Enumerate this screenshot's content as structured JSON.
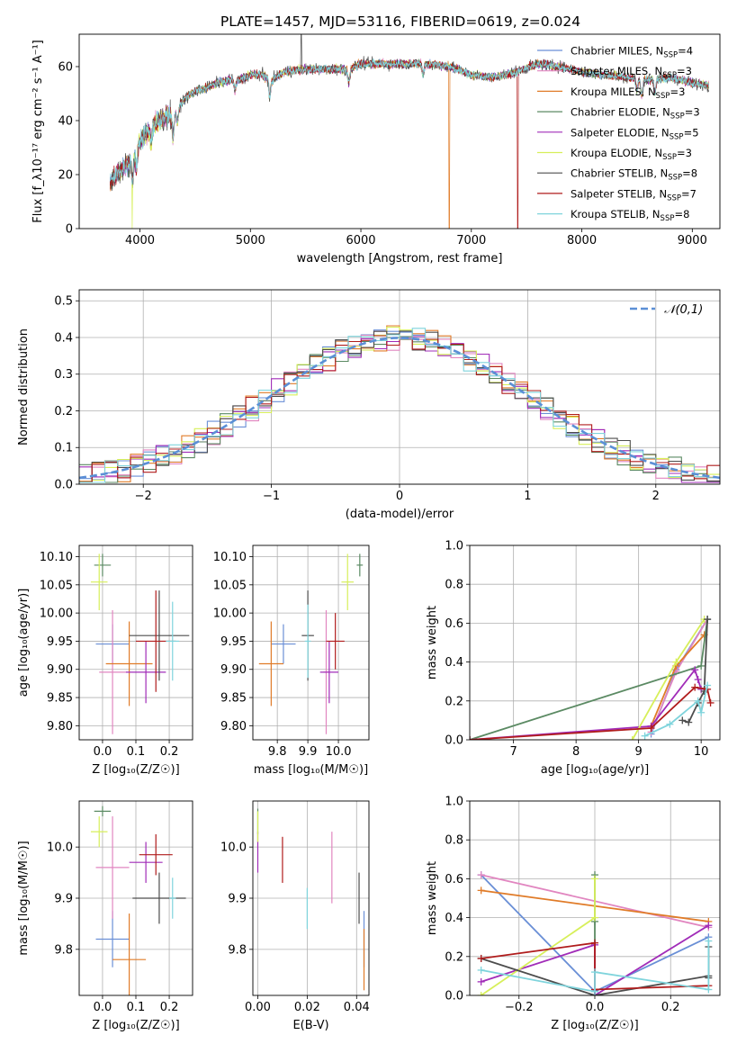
{
  "figure_title": "PLATE=1457, MJD=53116, FIBERID=0619, z=0.024",
  "models": [
    {
      "name": "Chabrier MILES",
      "nssp": "4",
      "color": "#6a8fd6"
    },
    {
      "name": "Salpeter MILES",
      "nssp": "3",
      "color": "#e186c0"
    },
    {
      "name": "Kroupa MILES",
      "nssp": "3",
      "color": "#e07b28"
    },
    {
      "name": "Chabrier ELODIE",
      "nssp": "3",
      "color": "#5b8a63"
    },
    {
      "name": "Salpeter ELODIE",
      "nssp": "5",
      "color": "#a12cb8"
    },
    {
      "name": "Kroupa ELODIE",
      "nssp": "3",
      "color": "#d7ef5a"
    },
    {
      "name": "Chabrier STELIB",
      "nssp": "8",
      "color": "#4d4d4d"
    },
    {
      "name": "Salpeter STELIB",
      "nssp": "7",
      "color": "#b01c1c"
    },
    {
      "name": "Kroupa STELIB",
      "nssp": "8",
      "color": "#7fd4dc"
    }
  ],
  "chart_data": [
    {
      "id": "spectrum",
      "type": "line",
      "xlabel": "wavelength [Angstrom, rest frame]",
      "ylabel": "Flux [f_λ10⁻¹⁷ erg cm⁻² s⁻¹ A⁻¹]",
      "xlim": [
        3450,
        9250
      ],
      "ylim": [
        0,
        72
      ],
      "xticks": [
        4000,
        5000,
        6000,
        7000,
        8000,
        9000
      ],
      "yticks": [
        0,
        20,
        40,
        60
      ],
      "continuum": [
        [
          3730,
          17
        ],
        [
          3800,
          21
        ],
        [
          3900,
          24
        ],
        [
          4000,
          33
        ],
        [
          4100,
          37
        ],
        [
          4200,
          41
        ],
        [
          4300,
          42
        ],
        [
          4400,
          48
        ],
        [
          4500,
          51
        ],
        [
          4600,
          52
        ],
        [
          4700,
          54
        ],
        [
          4800,
          55
        ],
        [
          4900,
          55
        ],
        [
          5000,
          57
        ],
        [
          5100,
          57
        ],
        [
          5200,
          55
        ],
        [
          5300,
          58
        ],
        [
          5500,
          59
        ],
        [
          5700,
          59
        ],
        [
          5900,
          59
        ],
        [
          6000,
          61
        ],
        [
          6200,
          61
        ],
        [
          6400,
          61
        ],
        [
          6600,
          61
        ],
        [
          6800,
          60
        ],
        [
          7000,
          57
        ],
        [
          7200,
          56
        ],
        [
          7400,
          58
        ],
        [
          7600,
          61
        ],
        [
          7800,
          60
        ],
        [
          8000,
          58
        ],
        [
          8200,
          57
        ],
        [
          8400,
          56
        ],
        [
          8600,
          55
        ],
        [
          8800,
          56
        ],
        [
          9000,
          54
        ],
        [
          9150,
          53
        ]
      ],
      "absorption_lines": [
        [
          3933,
          10
        ],
        [
          3968,
          8
        ],
        [
          4101,
          5
        ],
        [
          4300,
          8
        ],
        [
          4340,
          5
        ],
        [
          4861,
          4
        ],
        [
          5175,
          7
        ],
        [
          5890,
          5
        ],
        [
          6563,
          4
        ],
        [
          8498,
          4
        ],
        [
          8542,
          6
        ],
        [
          8662,
          5
        ]
      ],
      "drops": [
        {
          "x": 3930,
          "series": "Kroupa ELODIE"
        },
        {
          "x": 6800,
          "series": "Kroupa MILES"
        },
        {
          "x": 7420,
          "series": "Salpeter STELIB"
        }
      ],
      "spike": {
        "x": 5460,
        "y": 72
      }
    },
    {
      "id": "residual-histogram",
      "type": "line",
      "xlabel": "(data-model)/error",
      "ylabel": "Normed distribution",
      "xlim": [
        -2.5,
        2.5
      ],
      "ylim": [
        0,
        0.53
      ],
      "xticks": [
        -2,
        -1,
        0,
        1,
        2
      ],
      "yticks": [
        0.0,
        0.1,
        0.2,
        0.3,
        0.4,
        0.5
      ],
      "bin_width": 0.1,
      "normal_curve_label": "𝒩(0,1)",
      "normal_curve_color": "#5b8fd6"
    },
    {
      "id": "age-vs-Z",
      "type": "scatter",
      "xlabel": "Z [log₁₀(Z/Z☉)]",
      "ylabel": "age  [log₁₀(age/yr)]",
      "xlim": [
        -0.07,
        0.27
      ],
      "ylim": [
        9.775,
        10.12
      ],
      "xticks": [
        0.0,
        0.1,
        0.2
      ],
      "yticks": [
        9.8,
        9.85,
        9.9,
        9.95,
        10.0,
        10.05,
        10.1
      ],
      "points": [
        {
          "series": "Chabrier MILES",
          "x": 0.03,
          "y": 9.945,
          "xerr": 0.05,
          "yerr": 0.035
        },
        {
          "series": "Salpeter MILES",
          "x": 0.03,
          "y": 9.895,
          "xerr": 0.04,
          "yerr": 0.11
        },
        {
          "series": "Kroupa MILES",
          "x": 0.08,
          "y": 9.91,
          "xerr": 0.07,
          "yerr": 0.075
        },
        {
          "series": "Chabrier ELODIE",
          "x": 0.0,
          "y": 10.085,
          "xerr": 0.025,
          "yerr": 0.02
        },
        {
          "series": "Salpeter ELODIE",
          "x": 0.13,
          "y": 9.895,
          "xerr": 0.06,
          "yerr": 0.055
        },
        {
          "series": "Kroupa ELODIE",
          "x": -0.01,
          "y": 10.055,
          "xerr": 0.025,
          "yerr": 0.05
        },
        {
          "series": "Chabrier STELIB",
          "x": 0.17,
          "y": 9.96,
          "xerr": 0.09,
          "yerr": 0.08
        },
        {
          "series": "Salpeter STELIB",
          "x": 0.16,
          "y": 9.95,
          "xerr": 0.06,
          "yerr": 0.09
        },
        {
          "series": "Kroupa STELIB",
          "x": 0.21,
          "y": 9.95,
          "xerr": 0.02,
          "yerr": 0.07
        }
      ]
    },
    {
      "id": "age-vs-mass",
      "type": "scatter",
      "xlabel": "mass [log₁₀(M/M☉)]",
      "ylabel": "",
      "xlim": [
        9.72,
        10.1
      ],
      "ylim": [
        9.775,
        10.12
      ],
      "xticks": [
        9.8,
        9.9,
        10.0
      ],
      "yticks": [
        9.8,
        9.85,
        9.9,
        9.95,
        10.0,
        10.05,
        10.1
      ],
      "points": [
        {
          "series": "Chabrier MILES",
          "x": 9.82,
          "y": 9.945,
          "xerr": 0.04,
          "yerr": 0.035
        },
        {
          "series": "Salpeter MILES",
          "x": 9.96,
          "y": 9.895,
          "xerr": 0.01,
          "yerr": 0.11
        },
        {
          "series": "Kroupa MILES",
          "x": 9.78,
          "y": 9.91,
          "xerr": 0.04,
          "yerr": 0.075
        },
        {
          "series": "Chabrier ELODIE",
          "x": 10.07,
          "y": 10.085,
          "xerr": 0.01,
          "yerr": 0.02
        },
        {
          "series": "Salpeter ELODIE",
          "x": 9.97,
          "y": 9.895,
          "xerr": 0.03,
          "yerr": 0.055
        },
        {
          "series": "Kroupa ELODIE",
          "x": 10.03,
          "y": 10.055,
          "xerr": 0.02,
          "yerr": 0.05
        },
        {
          "series": "Chabrier STELIB",
          "x": 9.9,
          "y": 9.96,
          "xerr": 0.02,
          "yerr": 0.08
        },
        {
          "series": "Salpeter STELIB",
          "x": 9.99,
          "y": 9.95,
          "xerr": 0.03,
          "yerr": 0.05
        },
        {
          "series": "Kroupa STELIB",
          "x": 9.9,
          "y": 9.95,
          "xerr": 0.01,
          "yerr": 0.065
        }
      ]
    },
    {
      "id": "mass-weight-vs-age",
      "type": "line",
      "xlabel": "age  [log₁₀(age/yr)]",
      "ylabel": "mass weight",
      "xlim": [
        6.3,
        10.3
      ],
      "ylim": [
        0,
        1
      ],
      "xticks": [
        7,
        8,
        9,
        10
      ],
      "yticks": [
        0.0,
        0.2,
        0.4,
        0.6,
        0.8,
        1.0
      ],
      "series": [
        {
          "name": "Chabrier MILES",
          "x": [
            9.2,
            9.6,
            10.1
          ],
          "y": [
            0.03,
            0.36,
            0.62
          ]
        },
        {
          "name": "Salpeter MILES",
          "x": [
            9.2,
            9.6,
            10.1
          ],
          "y": [
            0.04,
            0.35,
            0.62
          ]
        },
        {
          "name": "Kroupa MILES",
          "x": [
            9.2,
            9.6,
            10.05
          ],
          "y": [
            0.07,
            0.38,
            0.54
          ]
        },
        {
          "name": "Chabrier ELODIE",
          "x": [
            6.3,
            10.0,
            10.1
          ],
          "y": [
            0.0,
            0.38,
            0.62
          ]
        },
        {
          "name": "Salpeter ELODIE",
          "x": [
            6.3,
            9.2,
            9.9,
            9.95,
            10.0
          ],
          "y": [
            0.0,
            0.07,
            0.36,
            0.31,
            0.26
          ]
        },
        {
          "name": "Kroupa ELODIE",
          "x": [
            8.9,
            9.6,
            10.05
          ],
          "y": [
            0.0,
            0.4,
            0.62
          ]
        },
        {
          "name": "Chabrier STELIB",
          "x": [
            9.7,
            9.8,
            9.95,
            10.05,
            10.1
          ],
          "y": [
            0.1,
            0.09,
            0.19,
            0.25,
            0.62
          ]
        },
        {
          "name": "Salpeter STELIB",
          "x": [
            6.3,
            9.2,
            9.9,
            10.1,
            10.15
          ],
          "y": [
            0.0,
            0.06,
            0.27,
            0.26,
            0.19
          ]
        },
        {
          "name": "Kroupa STELIB",
          "x": [
            9.1,
            9.5,
            9.95,
            10.0,
            10.1
          ],
          "y": [
            0.02,
            0.08,
            0.2,
            0.14,
            0.28
          ]
        }
      ]
    },
    {
      "id": "mass-vs-Z",
      "type": "scatter",
      "xlabel": "Z [log₁₀(Z/Z☉)]",
      "ylabel": "mass [log₁₀(M/M☉)]",
      "xlim": [
        -0.07,
        0.27
      ],
      "ylim": [
        9.71,
        10.09
      ],
      "xticks": [
        0.0,
        0.1,
        0.2
      ],
      "yticks": [
        9.8,
        9.9,
        10.0
      ],
      "points": [
        {
          "series": "Chabrier MILES",
          "x": 0.03,
          "y": 9.82,
          "xerr": 0.05,
          "yerr": 0.055
        },
        {
          "series": "Salpeter MILES",
          "x": 0.03,
          "y": 9.96,
          "xerr": 0.05,
          "yerr": 0.1
        },
        {
          "series": "Kroupa MILES",
          "x": 0.08,
          "y": 9.78,
          "xerr": 0.05,
          "yerr": 0.09
        },
        {
          "series": "Chabrier ELODIE",
          "x": 0.0,
          "y": 10.07,
          "xerr": 0.025,
          "yerr": 0.01
        },
        {
          "series": "Salpeter ELODIE",
          "x": 0.13,
          "y": 9.97,
          "xerr": 0.05,
          "yerr": 0.04
        },
        {
          "series": "Kroupa ELODIE",
          "x": -0.01,
          "y": 10.03,
          "xerr": 0.025,
          "yerr": 0.03
        },
        {
          "series": "Chabrier STELIB",
          "x": 0.17,
          "y": 9.9,
          "xerr": 0.08,
          "yerr": 0.05
        },
        {
          "series": "Salpeter STELIB",
          "x": 0.16,
          "y": 9.985,
          "xerr": 0.05,
          "yerr": 0.04
        },
        {
          "series": "Kroupa STELIB",
          "x": 0.21,
          "y": 9.9,
          "xerr": 0.01,
          "yerr": 0.04
        }
      ]
    },
    {
      "id": "mass-vs-ebv",
      "type": "scatter",
      "xlabel": "E(B-V)",
      "ylabel": "",
      "xlim": [
        -0.002,
        0.045
      ],
      "ylim": [
        9.71,
        10.09
      ],
      "xticks": [
        0.0,
        0.02,
        0.04
      ],
      "yticks": [
        9.8,
        9.9,
        10.0
      ],
      "points": [
        {
          "series": "Chabrier MILES",
          "x": 0.043,
          "y": 9.82,
          "xerr": 0,
          "yerr": 0.055
        },
        {
          "series": "Salpeter MILES",
          "x": 0.03,
          "y": 9.96,
          "xerr": 0,
          "yerr": 0.07
        },
        {
          "series": "Kroupa MILES",
          "x": 0.043,
          "y": 9.78,
          "xerr": 0,
          "yerr": 0.06
        },
        {
          "series": "Chabrier ELODIE",
          "x": 0.0,
          "y": 10.05,
          "xerr": 0,
          "yerr": 0.025
        },
        {
          "series": "Salpeter ELODIE",
          "x": 0.0,
          "y": 9.99,
          "xerr": 0,
          "yerr": 0.04
        },
        {
          "series": "Kroupa ELODIE",
          "x": 0.0,
          "y": 10.04,
          "xerr": 0,
          "yerr": 0.03
        },
        {
          "series": "Chabrier STELIB",
          "x": 0.041,
          "y": 9.9,
          "xerr": 0,
          "yerr": 0.05
        },
        {
          "series": "Salpeter STELIB",
          "x": 0.01,
          "y": 9.975,
          "xerr": 0,
          "yerr": 0.045
        },
        {
          "series": "Kroupa STELIB",
          "x": 0.02,
          "y": 9.88,
          "xerr": 0,
          "yerr": 0.04
        }
      ]
    },
    {
      "id": "mass-weight-vs-Z",
      "type": "line",
      "xlabel": "Z [log₁₀(Z/Z☉)]",
      "ylabel": "mass weight",
      "xlim": [
        -0.33,
        0.33
      ],
      "ylim": [
        0,
        1
      ],
      "xticks": [
        -0.2,
        0.0,
        0.2
      ],
      "yticks": [
        0.0,
        0.2,
        0.4,
        0.6,
        0.8,
        1.0
      ],
      "series": [
        {
          "name": "Chabrier MILES",
          "x": [
            -0.3,
            0.0,
            0.3
          ],
          "y": [
            0.62,
            0.02,
            0.3
          ]
        },
        {
          "name": "Salpeter MILES",
          "x": [
            -0.3,
            0.3
          ],
          "y": [
            0.62,
            0.35
          ]
        },
        {
          "name": "Kroupa MILES",
          "x": [
            -0.3,
            0.3
          ],
          "y": [
            0.54,
            0.38
          ]
        },
        {
          "name": "Chabrier ELODIE",
          "x": [
            0.0,
            0.0,
            0.0
          ],
          "y": [
            0.62,
            0.38,
            0.0
          ]
        },
        {
          "name": "Salpeter ELODIE",
          "x": [
            -0.3,
            0.0,
            0.0,
            0.3
          ],
          "y": [
            0.07,
            0.26,
            0.0,
            0.36
          ]
        },
        {
          "name": "Kroupa ELODIE",
          "x": [
            -0.3,
            0.0,
            0.0
          ],
          "y": [
            0.0,
            0.4,
            0.6
          ]
        },
        {
          "name": "Chabrier STELIB",
          "x": [
            -0.3,
            0.0,
            0.3,
            0.3,
            0.3
          ],
          "y": [
            0.19,
            0.0,
            0.1,
            0.25,
            0.09
          ]
        },
        {
          "name": "Salpeter STELIB",
          "x": [
            -0.3,
            0.0,
            0.0,
            0.3
          ],
          "y": [
            0.19,
            0.27,
            0.03,
            0.05
          ]
        },
        {
          "name": "Kroupa STELIB",
          "x": [
            -0.3,
            0.0,
            0.0,
            0.3,
            0.3
          ],
          "y": [
            0.13,
            0.02,
            0.12,
            0.03,
            0.28
          ]
        }
      ]
    }
  ]
}
